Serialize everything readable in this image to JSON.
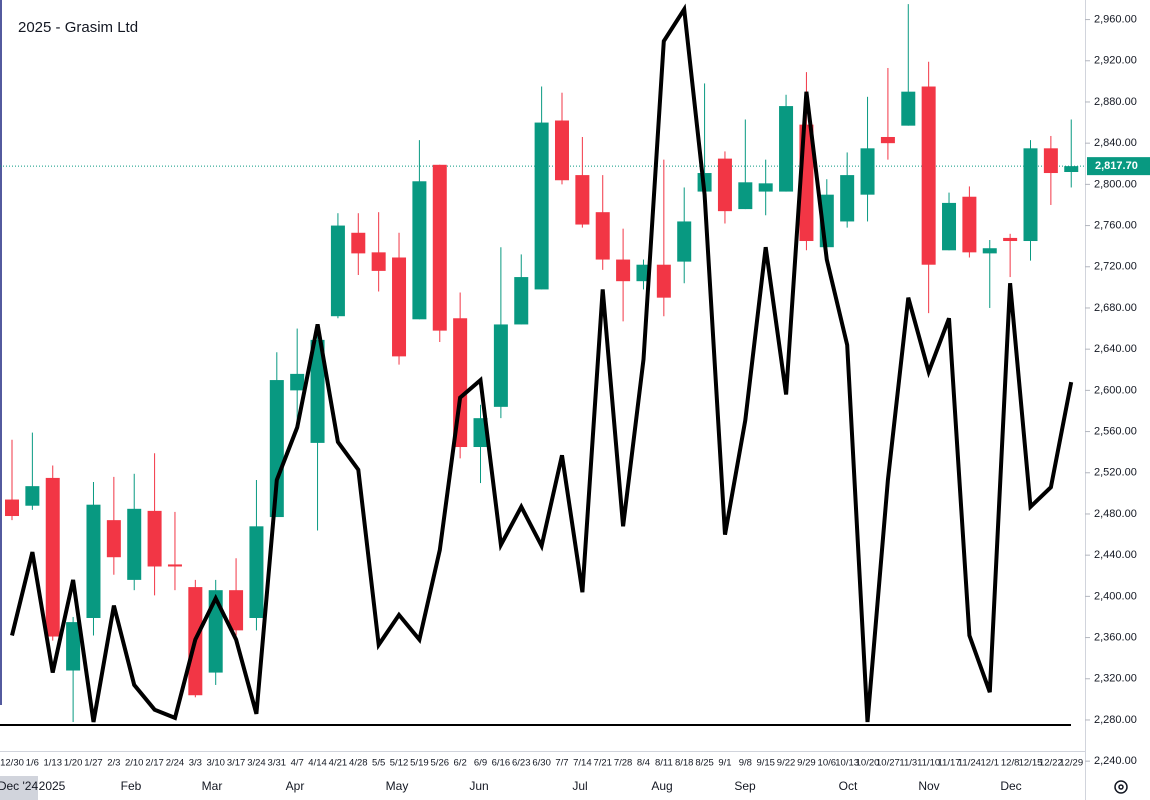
{
  "chart_data": {
    "type": "candlestick",
    "title": "2025 - Grasim Ltd",
    "categories": [
      "12/30",
      "1/6",
      "1/13",
      "1/20",
      "1/27",
      "2/3",
      "2/10",
      "2/17",
      "2/24",
      "3/3",
      "3/10",
      "3/17",
      "3/24",
      "3/31",
      "4/7",
      "4/14",
      "4/21",
      "4/28",
      "5/5",
      "5/12",
      "5/19",
      "5/26",
      "6/2",
      "6/9",
      "6/16",
      "6/23",
      "6/30",
      "7/7",
      "7/14",
      "7/21",
      "7/28",
      "8/4",
      "8/11",
      "8/18",
      "8/25",
      "9/1",
      "9/8",
      "9/15",
      "9/22",
      "9/29",
      "10/6",
      "10/13",
      "10/20",
      "10/27",
      "11/3",
      "11/10",
      "11/17",
      "11/24",
      "12/1",
      "12/8",
      "12/15",
      "12/22",
      "12/29"
    ],
    "months": [
      "Dec '24",
      "2025",
      "Feb",
      "Mar",
      "Apr",
      "May",
      "Jun",
      "Jul",
      "Aug",
      "Sep",
      "Oct",
      "Nov",
      "Dec"
    ],
    "open": [
      2494,
      2488,
      2515,
      2328,
      2379,
      2474,
      2416,
      2483,
      2431,
      2409,
      2326,
      2406,
      2379,
      2477,
      2600,
      2549,
      2672,
      2753,
      2734,
      2729,
      2669,
      2819,
      2670,
      2545,
      2584,
      2664,
      2698,
      2862,
      2809,
      2773,
      2727,
      2706,
      2722,
      2725,
      2793,
      2825,
      2776,
      2793,
      2793,
      2858,
      2739,
      2764,
      2790,
      2846,
      2857,
      2895,
      2736,
      2788,
      2733,
      2748,
      2745,
      2835,
      2812
    ],
    "high": [
      2552,
      2559,
      2527,
      2380,
      2511,
      2516,
      2519,
      2539,
      2482,
      2416,
      2416,
      2437,
      2513,
      2637,
      2660,
      2664,
      2772,
      2772,
      2773,
      2753,
      2843,
      2819,
      2695,
      2586,
      2739,
      2732,
      2895,
      2889,
      2846,
      2809,
      2757,
      2727,
      2824,
      2797,
      2898,
      2832,
      2863,
      2824,
      2887,
      2909,
      2805,
      2831,
      2885,
      2913,
      2975,
      2919,
      2792,
      2798,
      2746,
      2752,
      2843,
      2847,
      2863
    ],
    "low": [
      2474,
      2484,
      2357,
      2278,
      2362,
      2421,
      2406,
      2401,
      2406,
      2302,
      2314,
      2362,
      2367,
      2477,
      2560,
      2464,
      2670,
      2712,
      2696,
      2625,
      2669,
      2647,
      2534,
      2510,
      2573,
      2664,
      2698,
      2800,
      2758,
      2717,
      2667,
      2698,
      2672,
      2704,
      2793,
      2762,
      2776,
      2770,
      2793,
      2736,
      2739,
      2758,
      2764,
      2824,
      2857,
      2675,
      2736,
      2729,
      2680,
      2710,
      2726,
      2780,
      2797
    ],
    "close": [
      2478,
      2507,
      2361,
      2375,
      2489,
      2438,
      2485,
      2429,
      2429,
      2304,
      2406,
      2367,
      2468,
      2610,
      2616,
      2649,
      2760,
      2733,
      2716,
      2633,
      2803,
      2658,
      2545,
      2573,
      2664,
      2710,
      2860,
      2804,
      2761,
      2727,
      2706,
      2722,
      2690,
      2764,
      2811,
      2774,
      2802,
      2801,
      2876,
      2745,
      2790,
      2809,
      2835,
      2840,
      2890,
      2722,
      2782,
      2734,
      2738,
      2745,
      2835,
      2811,
      2817.7
    ],
    "up_color": "#089981",
    "down_color": "#f23645",
    "line": {
      "color": "#000000",
      "values": [
        2362,
        2443,
        2326,
        2416,
        2278,
        2391,
        2314,
        2290,
        2282,
        2358,
        2398,
        2358,
        2286,
        2513,
        2564,
        2664,
        2550,
        2523,
        2353,
        2382,
        2358,
        2445,
        2593,
        2610,
        2450,
        2487,
        2449,
        2537,
        2404,
        2698,
        2468,
        2630,
        2939,
        2970,
        2790,
        2460,
        2571,
        2739,
        2596,
        2890,
        2727,
        2644,
        2278,
        2513,
        2690,
        2618,
        2670,
        2362,
        2307,
        2704,
        2487,
        2506,
        2608
      ]
    },
    "last_price": {
      "value": 2817.7,
      "label": "2,817.70"
    },
    "ylim": [
      2212,
      2979
    ],
    "yticks": [
      {
        "value": 2240,
        "label": "2,240.00"
      },
      {
        "value": 2280,
        "label": "2,280.00"
      },
      {
        "value": 2320,
        "label": "2,320.00"
      },
      {
        "value": 2360,
        "label": "2,360.00"
      },
      {
        "value": 2400,
        "label": "2,400.00"
      },
      {
        "value": 2440,
        "label": "2,440.00"
      },
      {
        "value": 2480,
        "label": "2,480.00"
      },
      {
        "value": 2520,
        "label": "2,520.00"
      },
      {
        "value": 2560,
        "label": "2,560.00"
      },
      {
        "value": 2600,
        "label": "2,600.00"
      },
      {
        "value": 2640,
        "label": "2,640.00"
      },
      {
        "value": 2680,
        "label": "2,680.00"
      },
      {
        "value": 2720,
        "label": "2,720.00"
      },
      {
        "value": 2760,
        "label": "2,760.00"
      },
      {
        "value": 2800,
        "label": "2,800.00"
      },
      {
        "value": 2840,
        "label": "2,840.00"
      },
      {
        "value": 2880,
        "label": "2,880.00"
      },
      {
        "value": 2920,
        "label": "2,920.00"
      },
      {
        "value": 2960,
        "label": "2,960.00"
      }
    ]
  }
}
